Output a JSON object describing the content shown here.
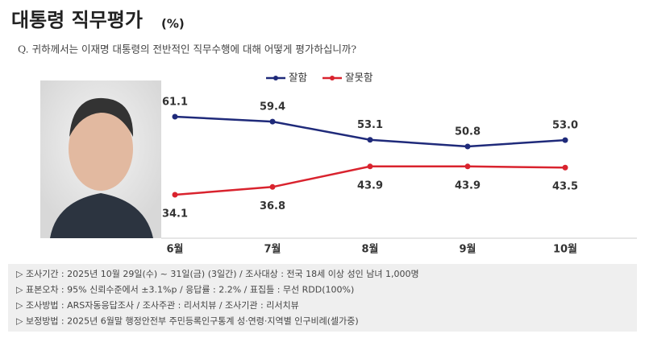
{
  "chart_data": {
    "type": "line",
    "title": "대통령 직무평가",
    "unit": "(%)",
    "subtitle": "Q. 귀하께서는 이재명 대통령의 전반적인 직무수행에 대해 어떻게 평가하십니까?",
    "categories": [
      "6월",
      "7월",
      "8월",
      "9월",
      "10월"
    ],
    "series": [
      {
        "name": "잘함",
        "color": "#1f2a7a",
        "values": [
          61.1,
          59.4,
          53.1,
          50.8,
          53.0
        ],
        "value_labels": [
          "61.1",
          "59.4",
          "53.1",
          "50.8",
          "53.0"
        ]
      },
      {
        "name": "잘못함",
        "color": "#d9232e",
        "values": [
          34.1,
          36.8,
          43.9,
          43.9,
          43.5
        ]
      }
    ],
    "notes": [
      "▷ 조사기간 : 2025년 10월 29일(수) ~ 31일(금) (3일간) / 조사대상 : 전국 18세 이상 성인 남녀 1,000명",
      "▷ 표본오차 : 95% 신뢰수준에서 ±3.1%p / 응답률 : 2.2% / 표집틀 : 무선 RDD(100%)",
      "▷ 조사방법 : ARS자동응답조사 / 조사주관 : 리서치뷰 / 조사기관 : 리서치뷰",
      "▷ 보정방법 : 2025년 6월말 행정안전부 주민등록인구통계 성·연령·지역별 인구비례(셀가중)"
    ]
  }
}
